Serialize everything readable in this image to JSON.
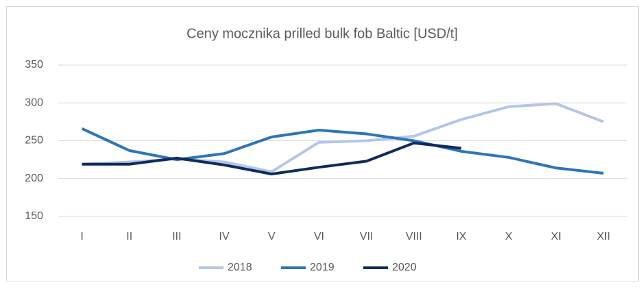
{
  "chart_data": {
    "type": "line",
    "title": "Ceny mocznika prilled bulk fob Baltic [USD/t]",
    "categories": [
      "I",
      "II",
      "III",
      "IV",
      "V",
      "VI",
      "VII",
      "VIII",
      "IX",
      "X",
      "XI",
      "XII"
    ],
    "series": [
      {
        "name": "2018",
        "color": "#b4c6e7",
        "values": [
          219,
          222,
          226,
          222,
          209,
          248,
          250,
          256,
          278,
          295,
          299,
          275
        ]
      },
      {
        "name": "2019",
        "color": "#2e75b6",
        "values": [
          266,
          237,
          225,
          233,
          255,
          264,
          259,
          250,
          236,
          228,
          214,
          207
        ]
      },
      {
        "name": "2020",
        "color": "#0f2a5c",
        "values": [
          219,
          219,
          227,
          218,
          206,
          215,
          223,
          247,
          240,
          null,
          null,
          null
        ]
      }
    ],
    "ylim": [
      150,
      350
    ],
    "yticks": [
      150,
      200,
      250,
      300,
      350
    ],
    "grid": true,
    "legend": "bottom"
  }
}
